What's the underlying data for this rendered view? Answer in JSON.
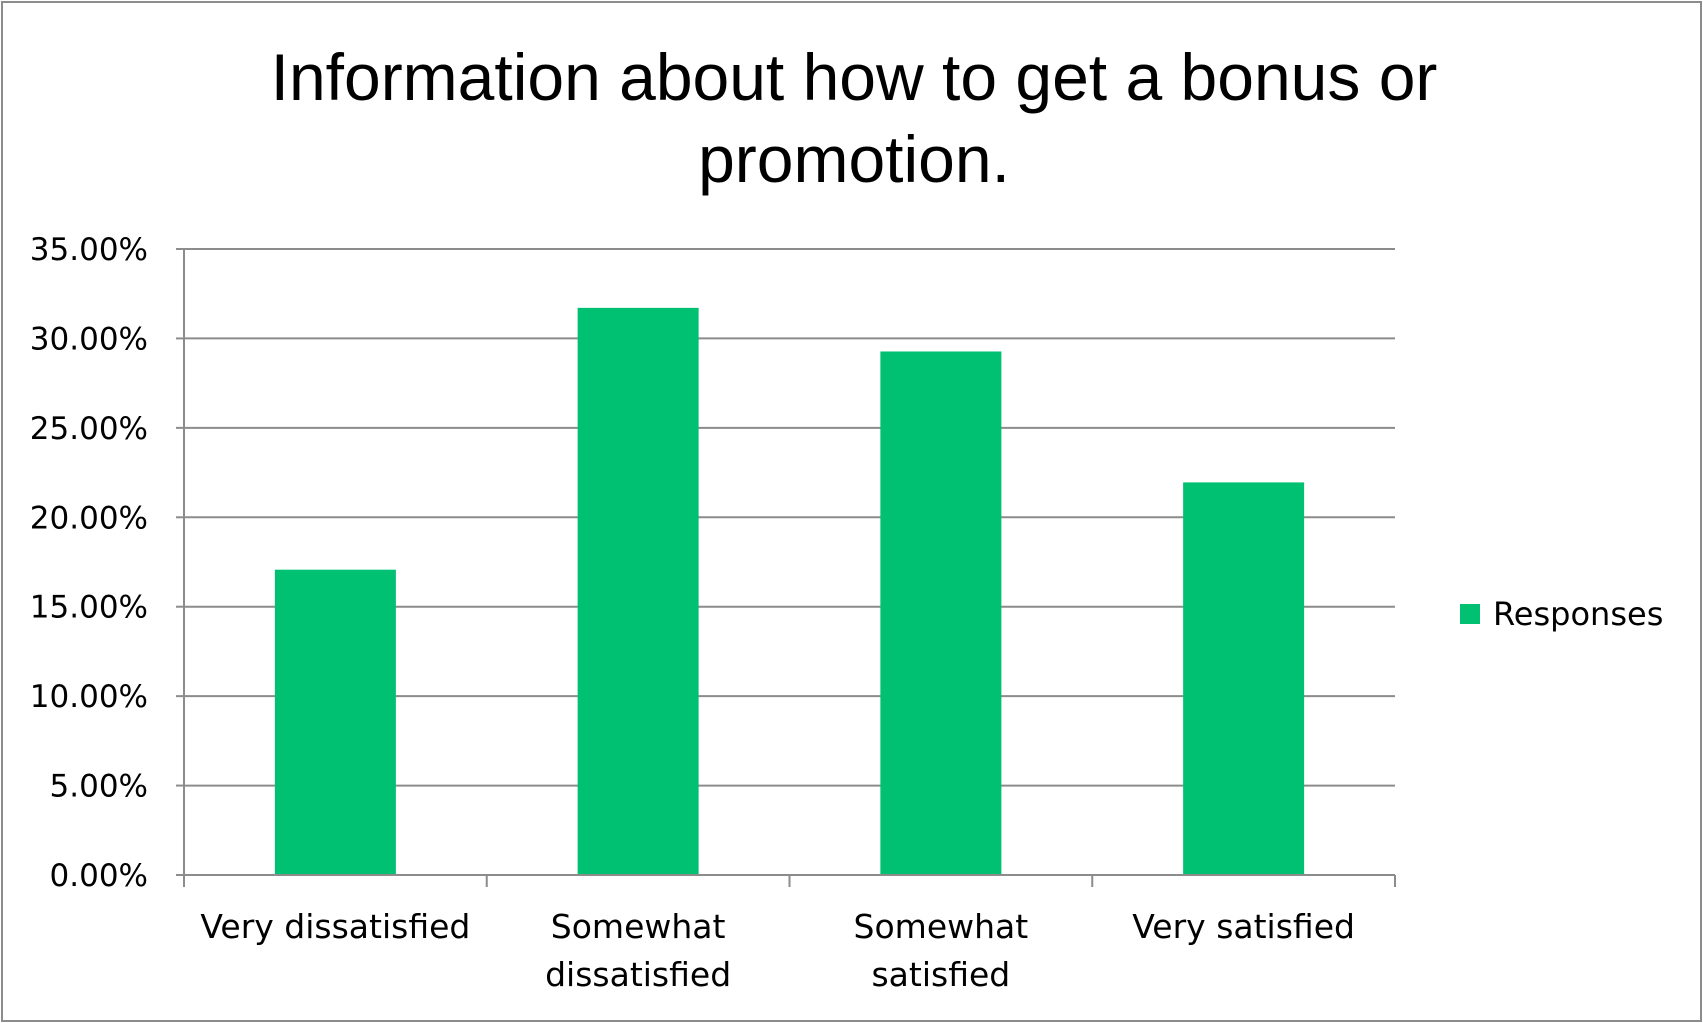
{
  "chart_data": {
    "type": "bar",
    "title_lines": [
      "Information about how to get a bonus or",
      "promotion."
    ],
    "categories": [
      [
        "Very dissatisfied"
      ],
      [
        "Somewhat",
        "dissatisfied"
      ],
      [
        "Somewhat",
        "satisfied"
      ],
      [
        "Very satisfied"
      ]
    ],
    "series": [
      {
        "name": "Responses",
        "values": [
          0.1707,
          0.3171,
          0.2927,
          0.2195
        ]
      }
    ],
    "y_ticks": [
      "0.00%",
      "5.00%",
      "10.00%",
      "15.00%",
      "20.00%",
      "25.00%",
      "30.00%",
      "35.00%"
    ],
    "ylim": [
      0,
      0.35
    ],
    "grid": true,
    "legend_position": "right",
    "colors": {
      "bar": "#00c072",
      "grid": "#8c8c8c",
      "axis": "#8c8c8c",
      "frame": "#8c8c8c"
    }
  }
}
